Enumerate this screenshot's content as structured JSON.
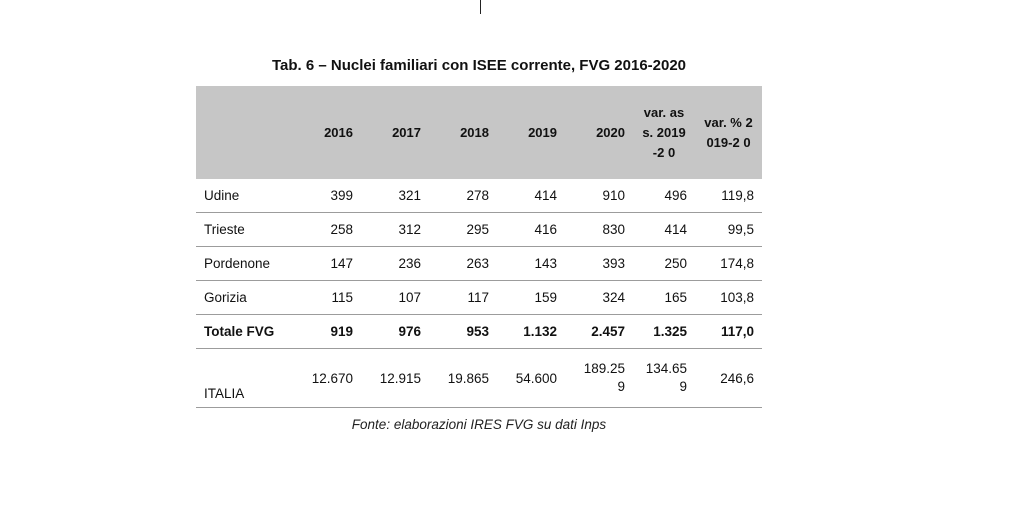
{
  "table": {
    "title": "Tab. 6 – Nuclei familiari con ISEE corrente, FVG 2016-2020",
    "columns": [
      "",
      "2016",
      "2017",
      "2018",
      "2019",
      "2020",
      "var. ass. 2019-2 0",
      "var. % 2019-2 0"
    ],
    "rows": [
      {
        "label": "Udine",
        "values": [
          "399",
          "321",
          "278",
          "414",
          "910",
          "496",
          "119,8"
        ]
      },
      {
        "label": "Trieste",
        "values": [
          "258",
          "312",
          "295",
          "416",
          "830",
          "414",
          "99,5"
        ]
      },
      {
        "label": "Pordenone",
        "values": [
          "147",
          "236",
          "263",
          "143",
          "393",
          "250",
          "174,8"
        ]
      },
      {
        "label": "Gorizia",
        "values": [
          "115",
          "107",
          "117",
          "159",
          "324",
          "165",
          "103,8"
        ]
      },
      {
        "label": "Totale FVG",
        "values": [
          "919",
          "976",
          "953",
          "1.132",
          "2.457",
          "1.325",
          "117,0"
        ]
      },
      {
        "label": "ITALIA",
        "values": [
          "12.670",
          "12.915",
          "19.865",
          "54.600",
          "189.25 9",
          "134.65 9",
          "246,6"
        ]
      }
    ]
  },
  "source": "Fonte: elaborazioni IRES FVG su dati Inps"
}
